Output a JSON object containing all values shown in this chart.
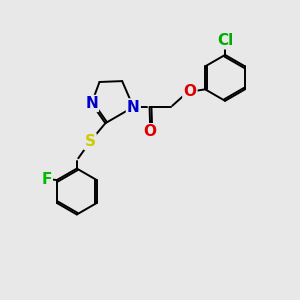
{
  "bg_color": "#e8e8e8",
  "bond_color": "#000000",
  "atom_colors": {
    "N": "#0000cc",
    "O": "#dd0000",
    "S": "#cccc00",
    "F": "#00bb00",
    "Cl": "#00aa00",
    "C": "#000000"
  },
  "lw": 1.4,
  "font_size": 11
}
